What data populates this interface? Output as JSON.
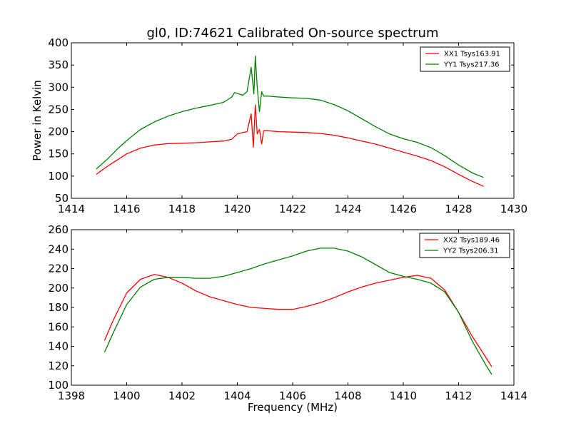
{
  "figure": {
    "title": "gl0, ID:74621 Calibrated On-source spectrum",
    "xlabel": "Frequency (MHz)",
    "ylabel": "Power in Kelvin"
  },
  "chart_data": [
    {
      "type": "line",
      "title": "gl0, ID:74621 Calibrated On-source spectrum",
      "xlabel": "",
      "ylabel": "Power in Kelvin",
      "xlim": [
        1414,
        1430
      ],
      "ylim": [
        50,
        400
      ],
      "xticks": [
        1414,
        1416,
        1418,
        1420,
        1422,
        1424,
        1426,
        1428,
        1430
      ],
      "yticks": [
        50,
        100,
        150,
        200,
        250,
        300,
        350,
        400
      ],
      "grid": false,
      "legend_position": "top-right",
      "series": [
        {
          "name": "XX1 Tsys163.91",
          "color": "#ff0000",
          "x": [
            1414.9,
            1415.3,
            1415.7,
            1416.0,
            1416.5,
            1417.0,
            1417.5,
            1418.0,
            1418.5,
            1419.0,
            1419.5,
            1419.8,
            1420.0,
            1420.2,
            1420.35,
            1420.5,
            1420.58,
            1420.65,
            1420.72,
            1420.8,
            1420.88,
            1420.95,
            1421.1,
            1421.5,
            1422.0,
            1422.5,
            1423.0,
            1423.5,
            1424.0,
            1424.5,
            1425.0,
            1425.5,
            1426.0,
            1426.5,
            1427.0,
            1427.5,
            1428.0,
            1428.5,
            1428.9
          ],
          "y": [
            104,
            122,
            138,
            150,
            163,
            170,
            173,
            174,
            175,
            177,
            179,
            183,
            195,
            198,
            200,
            240,
            165,
            260,
            195,
            205,
            172,
            202,
            202,
            200,
            199,
            198,
            196,
            192,
            186,
            179,
            172,
            163,
            154,
            145,
            135,
            121,
            104,
            88,
            77
          ]
        },
        {
          "name": "YY1 Tsys217.36",
          "color": "#008000",
          "x": [
            1414.9,
            1415.3,
            1415.7,
            1416.0,
            1416.5,
            1417.0,
            1417.5,
            1418.0,
            1418.5,
            1419.0,
            1419.5,
            1419.8,
            1419.9,
            1420.0,
            1420.2,
            1420.35,
            1420.5,
            1420.6,
            1420.65,
            1420.72,
            1420.8,
            1420.88,
            1420.95,
            1421.1,
            1421.5,
            1422.0,
            1422.5,
            1423.0,
            1423.5,
            1424.0,
            1424.5,
            1425.0,
            1425.5,
            1426.0,
            1426.5,
            1427.0,
            1427.5,
            1428.0,
            1428.5,
            1428.9
          ],
          "y": [
            116,
            138,
            163,
            180,
            205,
            222,
            235,
            245,
            253,
            259,
            266,
            278,
            288,
            286,
            282,
            290,
            345,
            285,
            370,
            300,
            245,
            290,
            280,
            280,
            278,
            276,
            275,
            271,
            261,
            247,
            229,
            211,
            195,
            184,
            176,
            164,
            146,
            125,
            107,
            97
          ]
        }
      ]
    },
    {
      "type": "line",
      "title": "",
      "xlabel": "Frequency (MHz)",
      "ylabel": "",
      "xlim": [
        1398,
        1414
      ],
      "ylim": [
        100,
        260
      ],
      "xticks": [
        1398,
        1400,
        1402,
        1404,
        1406,
        1408,
        1410,
        1412,
        1414
      ],
      "yticks": [
        100,
        120,
        140,
        160,
        180,
        200,
        220,
        240,
        260
      ],
      "grid": false,
      "legend_position": "top-right",
      "series": [
        {
          "name": "XX2 Tsys189.46",
          "color": "#ff0000",
          "x": [
            1399.2,
            1399.5,
            1400.0,
            1400.5,
            1401.0,
            1401.5,
            1402.0,
            1402.5,
            1403.0,
            1403.5,
            1404.0,
            1404.5,
            1405.0,
            1405.5,
            1406.0,
            1406.5,
            1407.0,
            1407.5,
            1408.0,
            1408.5,
            1409.0,
            1409.5,
            1410.0,
            1410.5,
            1411.0,
            1411.5,
            1412.0,
            1412.5,
            1413.0,
            1413.2
          ],
          "y": [
            146,
            166,
            195,
            209,
            214,
            211,
            205,
            197,
            191,
            187,
            183,
            180,
            179,
            178,
            178,
            181,
            185,
            190,
            196,
            201,
            205,
            208,
            211,
            213,
            210,
            198,
            175,
            150,
            128,
            119
          ]
        },
        {
          "name": "YY2 Tsys206.31",
          "color": "#008000",
          "x": [
            1399.2,
            1399.5,
            1400.0,
            1400.5,
            1401.0,
            1401.5,
            1402.0,
            1402.5,
            1403.0,
            1403.5,
            1404.0,
            1404.5,
            1405.0,
            1405.5,
            1406.0,
            1406.5,
            1407.0,
            1407.5,
            1408.0,
            1408.5,
            1409.0,
            1409.5,
            1410.0,
            1410.5,
            1411.0,
            1411.5,
            1412.0,
            1412.5,
            1413.0,
            1413.2
          ],
          "y": [
            134,
            153,
            183,
            201,
            209,
            211,
            211,
            210,
            210,
            212,
            216,
            220,
            225,
            229,
            233,
            238,
            241,
            241,
            238,
            232,
            224,
            216,
            212,
            209,
            205,
            196,
            175,
            145,
            120,
            111
          ]
        }
      ]
    }
  ]
}
